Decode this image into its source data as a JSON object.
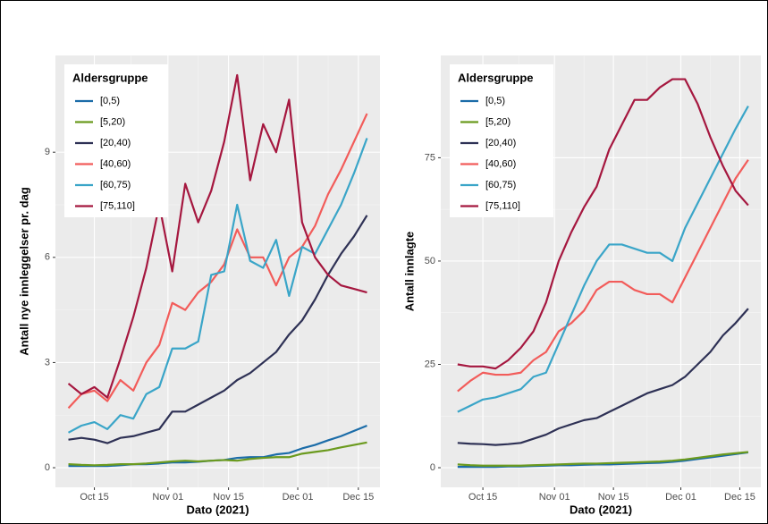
{
  "chart_data": [
    {
      "type": "line",
      "ylabel": "Antall nye innleggelser pr. dag",
      "xlabel": "Dato (2021)",
      "legend_title": "Aldersgruppe",
      "legend": "top-left",
      "grid": true,
      "x": [
        "2021-10-09",
        "2021-10-12",
        "2021-10-15",
        "2021-10-18",
        "2021-10-21",
        "2021-10-24",
        "2021-10-27",
        "2021-10-30",
        "2021-11-02",
        "2021-11-05",
        "2021-11-08",
        "2021-11-11",
        "2021-11-14",
        "2021-11-17",
        "2021-11-20",
        "2021-11-23",
        "2021-11-26",
        "2021-11-29",
        "2021-12-02",
        "2021-12-05",
        "2021-12-08",
        "2021-12-11",
        "2021-12-14",
        "2021-12-17"
      ],
      "xlim": [
        "2021-10-06",
        "2021-12-20"
      ],
      "xticks": [
        {
          "value": "2021-10-15",
          "label": "Oct 15"
        },
        {
          "value": "2021-11-01",
          "label": "Nov 01"
        },
        {
          "value": "2021-11-15",
          "label": "Nov 15"
        },
        {
          "value": "2021-12-01",
          "label": "Dec 01"
        },
        {
          "value": "2021-12-15",
          "label": "Dec 15"
        }
      ],
      "ylim": [
        -0.56,
        11.76
      ],
      "yticks": [
        0,
        3,
        6,
        9
      ],
      "series": [
        {
          "name": "[0,5)",
          "color": "#1b6ca8",
          "values": [
            0.05,
            0.05,
            0.05,
            0.05,
            0.07,
            0.1,
            0.1,
            0.12,
            0.15,
            0.15,
            0.17,
            0.2,
            0.22,
            0.28,
            0.3,
            0.3,
            0.38,
            0.42,
            0.55,
            0.65,
            0.78,
            0.9,
            1.05,
            1.2
          ]
        },
        {
          "name": "[5,20)",
          "color": "#6b9a1e",
          "values": [
            0.1,
            0.08,
            0.07,
            0.08,
            0.1,
            0.1,
            0.12,
            0.15,
            0.18,
            0.2,
            0.18,
            0.2,
            0.22,
            0.2,
            0.25,
            0.28,
            0.3,
            0.3,
            0.4,
            0.45,
            0.5,
            0.58,
            0.65,
            0.72
          ]
        },
        {
          "name": "[20,40)",
          "color": "#2e3155",
          "values": [
            0.8,
            0.85,
            0.8,
            0.7,
            0.85,
            0.9,
            1.0,
            1.1,
            1.6,
            1.6,
            1.8,
            2.0,
            2.2,
            2.5,
            2.7,
            3.0,
            3.3,
            3.8,
            4.2,
            4.8,
            5.5,
            6.1,
            6.6,
            7.2
          ]
        },
        {
          "name": "[40,60)",
          "color": "#f25c5a",
          "values": [
            1.7,
            2.1,
            2.2,
            1.9,
            2.5,
            2.2,
            3.0,
            3.5,
            4.7,
            4.5,
            5.0,
            5.3,
            5.8,
            6.8,
            6.0,
            6.0,
            5.2,
            6.0,
            6.3,
            6.9,
            7.8,
            8.5,
            9.3,
            10.1
          ]
        },
        {
          "name": "[60,75)",
          "color": "#3aa5c8",
          "values": [
            1.0,
            1.2,
            1.3,
            1.1,
            1.5,
            1.4,
            2.1,
            2.3,
            3.4,
            3.4,
            3.6,
            5.5,
            5.6,
            7.5,
            5.9,
            5.7,
            6.5,
            4.9,
            6.3,
            6.1,
            6.8,
            7.5,
            8.4,
            9.4
          ]
        },
        {
          "name": "[75,110]",
          "color": "#a5173f",
          "values": [
            2.4,
            2.1,
            2.3,
            2.0,
            3.1,
            4.3,
            5.7,
            7.5,
            5.6,
            8.1,
            7.0,
            7.9,
            9.3,
            11.2,
            8.2,
            9.8,
            9.0,
            10.5,
            7.0,
            6.0,
            5.5,
            5.2,
            5.1,
            5.0
          ]
        }
      ]
    },
    {
      "type": "line",
      "ylabel": "Antall innlagte",
      "xlabel": "Dato (2021)",
      "legend_title": "Aldersgruppe",
      "legend": "top-left",
      "grid": true,
      "x": [
        "2021-10-09",
        "2021-10-12",
        "2021-10-15",
        "2021-10-18",
        "2021-10-21",
        "2021-10-24",
        "2021-10-27",
        "2021-10-30",
        "2021-11-02",
        "2021-11-05",
        "2021-11-08",
        "2021-11-11",
        "2021-11-14",
        "2021-11-17",
        "2021-11-20",
        "2021-11-23",
        "2021-11-26",
        "2021-11-29",
        "2021-12-02",
        "2021-12-05",
        "2021-12-08",
        "2021-12-11",
        "2021-12-14",
        "2021-12-17"
      ],
      "xlim": [
        "2021-10-05",
        "2021-12-20"
      ],
      "xticks": [
        {
          "value": "2021-10-15",
          "label": "Oct 15"
        },
        {
          "value": "2021-11-01",
          "label": "Nov 01"
        },
        {
          "value": "2021-11-15",
          "label": "Nov 15"
        },
        {
          "value": "2021-12-01",
          "label": "Dec 01"
        },
        {
          "value": "2021-12-15",
          "label": "Dec 15"
        }
      ],
      "ylim": [
        -4.75,
        99.75
      ],
      "yticks": [
        0,
        25,
        50,
        75
      ],
      "series": [
        {
          "name": "[0,5)",
          "color": "#1b6ca8",
          "values": [
            0.2,
            0.2,
            0.2,
            0.2,
            0.3,
            0.3,
            0.4,
            0.5,
            0.6,
            0.6,
            0.7,
            0.8,
            0.8,
            0.9,
            1,
            1.1,
            1.2,
            1.4,
            1.7,
            2.1,
            2.5,
            2.9,
            3.3,
            3.7
          ]
        },
        {
          "name": "[5,20)",
          "color": "#6b9a1e",
          "values": [
            0.8,
            0.6,
            0.5,
            0.5,
            0.5,
            0.5,
            0.6,
            0.7,
            0.8,
            0.9,
            1,
            1,
            1.1,
            1.2,
            1.3,
            1.4,
            1.5,
            1.7,
            2,
            2.4,
            2.8,
            3.2,
            3.5,
            3.8
          ]
        },
        {
          "name": "[20,40)",
          "color": "#2e3155",
          "values": [
            6,
            5.8,
            5.7,
            5.5,
            5.7,
            6,
            7,
            8,
            9.5,
            10.5,
            11.5,
            12,
            13.5,
            15,
            16.5,
            18,
            19,
            20,
            22,
            25,
            28,
            32,
            35,
            38.5
          ]
        },
        {
          "name": "[40,60)",
          "color": "#f25c5a",
          "values": [
            18.5,
            21,
            23,
            22.5,
            22.5,
            23,
            26,
            28,
            33,
            35,
            38,
            43,
            45,
            45,
            43,
            42,
            42,
            40,
            46,
            52,
            58,
            64,
            70,
            74.5
          ]
        },
        {
          "name": "[60,75)",
          "color": "#3aa5c8",
          "values": [
            13.5,
            15,
            16.5,
            17,
            18,
            19,
            22,
            23,
            30,
            37,
            44,
            50,
            54,
            54,
            53,
            52,
            52,
            50,
            58,
            64,
            70,
            76,
            82,
            87.5
          ]
        },
        {
          "name": "[75,110]",
          "color": "#a5173f",
          "values": [
            25,
            24.5,
            24.5,
            24,
            26,
            29,
            33,
            40,
            50,
            57,
            63,
            68,
            77,
            83,
            89,
            89,
            92,
            94,
            94,
            88,
            80,
            73,
            67,
            63.5
          ]
        }
      ]
    }
  ]
}
